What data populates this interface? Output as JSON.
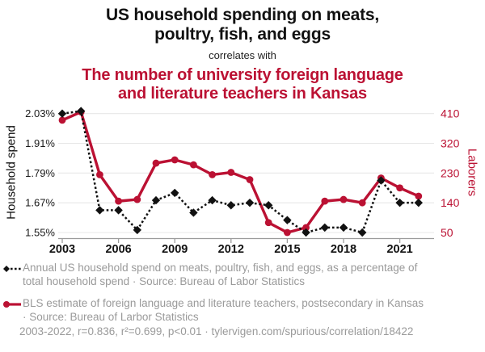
{
  "header": {
    "title_black": "US household spending on meats,\npoultry, fish, and eggs",
    "connector": "correlates with",
    "title_red": "The number of university foreign language\nand literature teachers in Kansas"
  },
  "colors": {
    "accent_red": "#bb1133",
    "series_black": "#111111",
    "gridline": "#e7e7e7",
    "axis_line": "#9b9b9b",
    "legend_gray": "#9a9a9a"
  },
  "chart_data": {
    "type": "line",
    "x": [
      2003,
      2004,
      2005,
      2006,
      2007,
      2008,
      2009,
      2010,
      2011,
      2012,
      2013,
      2014,
      2015,
      2016,
      2017,
      2018,
      2019,
      2020,
      2021,
      2022
    ],
    "series": [
      {
        "name": "Household spend",
        "axis": "left",
        "style": "dashed",
        "marker": "diamond",
        "color": "#111111",
        "values": [
          2.03,
          2.04,
          1.64,
          1.64,
          1.56,
          1.68,
          1.71,
          1.63,
          1.68,
          1.66,
          1.67,
          1.66,
          1.6,
          1.55,
          1.57,
          1.57,
          1.55,
          1.76,
          1.67,
          1.67
        ]
      },
      {
        "name": "Laborers",
        "axis": "right",
        "style": "solid",
        "marker": "circle",
        "color": "#bb1133",
        "values": [
          390,
          415,
          225,
          145,
          150,
          260,
          270,
          255,
          225,
          232,
          210,
          80,
          50,
          65,
          145,
          150,
          140,
          215,
          185,
          160
        ]
      }
    ],
    "left_axis": {
      "label": "Household spend",
      "min": 1.55,
      "max": 2.03,
      "ticks": [
        2.03,
        1.91,
        1.79,
        1.67,
        1.55
      ],
      "tick_labels": [
        "2.03%",
        "1.91%",
        "1.79%",
        "1.67%",
        "1.55%"
      ]
    },
    "right_axis": {
      "label": "Laborers",
      "min": 50,
      "max": 410,
      "ticks": [
        410,
        320,
        230,
        140,
        50
      ],
      "tick_labels": [
        "410",
        "320",
        "230",
        "140",
        "50"
      ]
    },
    "x_axis": {
      "ticks": [
        2003,
        2006,
        2009,
        2012,
        2015,
        2018,
        2021
      ],
      "tick_labels": [
        "2003",
        "2006",
        "2009",
        "2012",
        "2015",
        "2018",
        "2021"
      ]
    },
    "grid": true,
    "legend_position": "bottom"
  },
  "legend": {
    "series1_text": "Annual US household spend on meats, poultry, fish, and eggs, as a percentage of\ntotal household spend · Source: Bureau of Labor Statistics",
    "series2_text": "BLS estimate of foreign language and literature teachers, postsecondary in Kansas\n· Source: Bureau of Larbor Statistics"
  },
  "footer": {
    "stats_line": "2003-2022, r=0.836, r²=0.699, p<0.01 · tylervigen.com/spurious/correlation/18422"
  }
}
